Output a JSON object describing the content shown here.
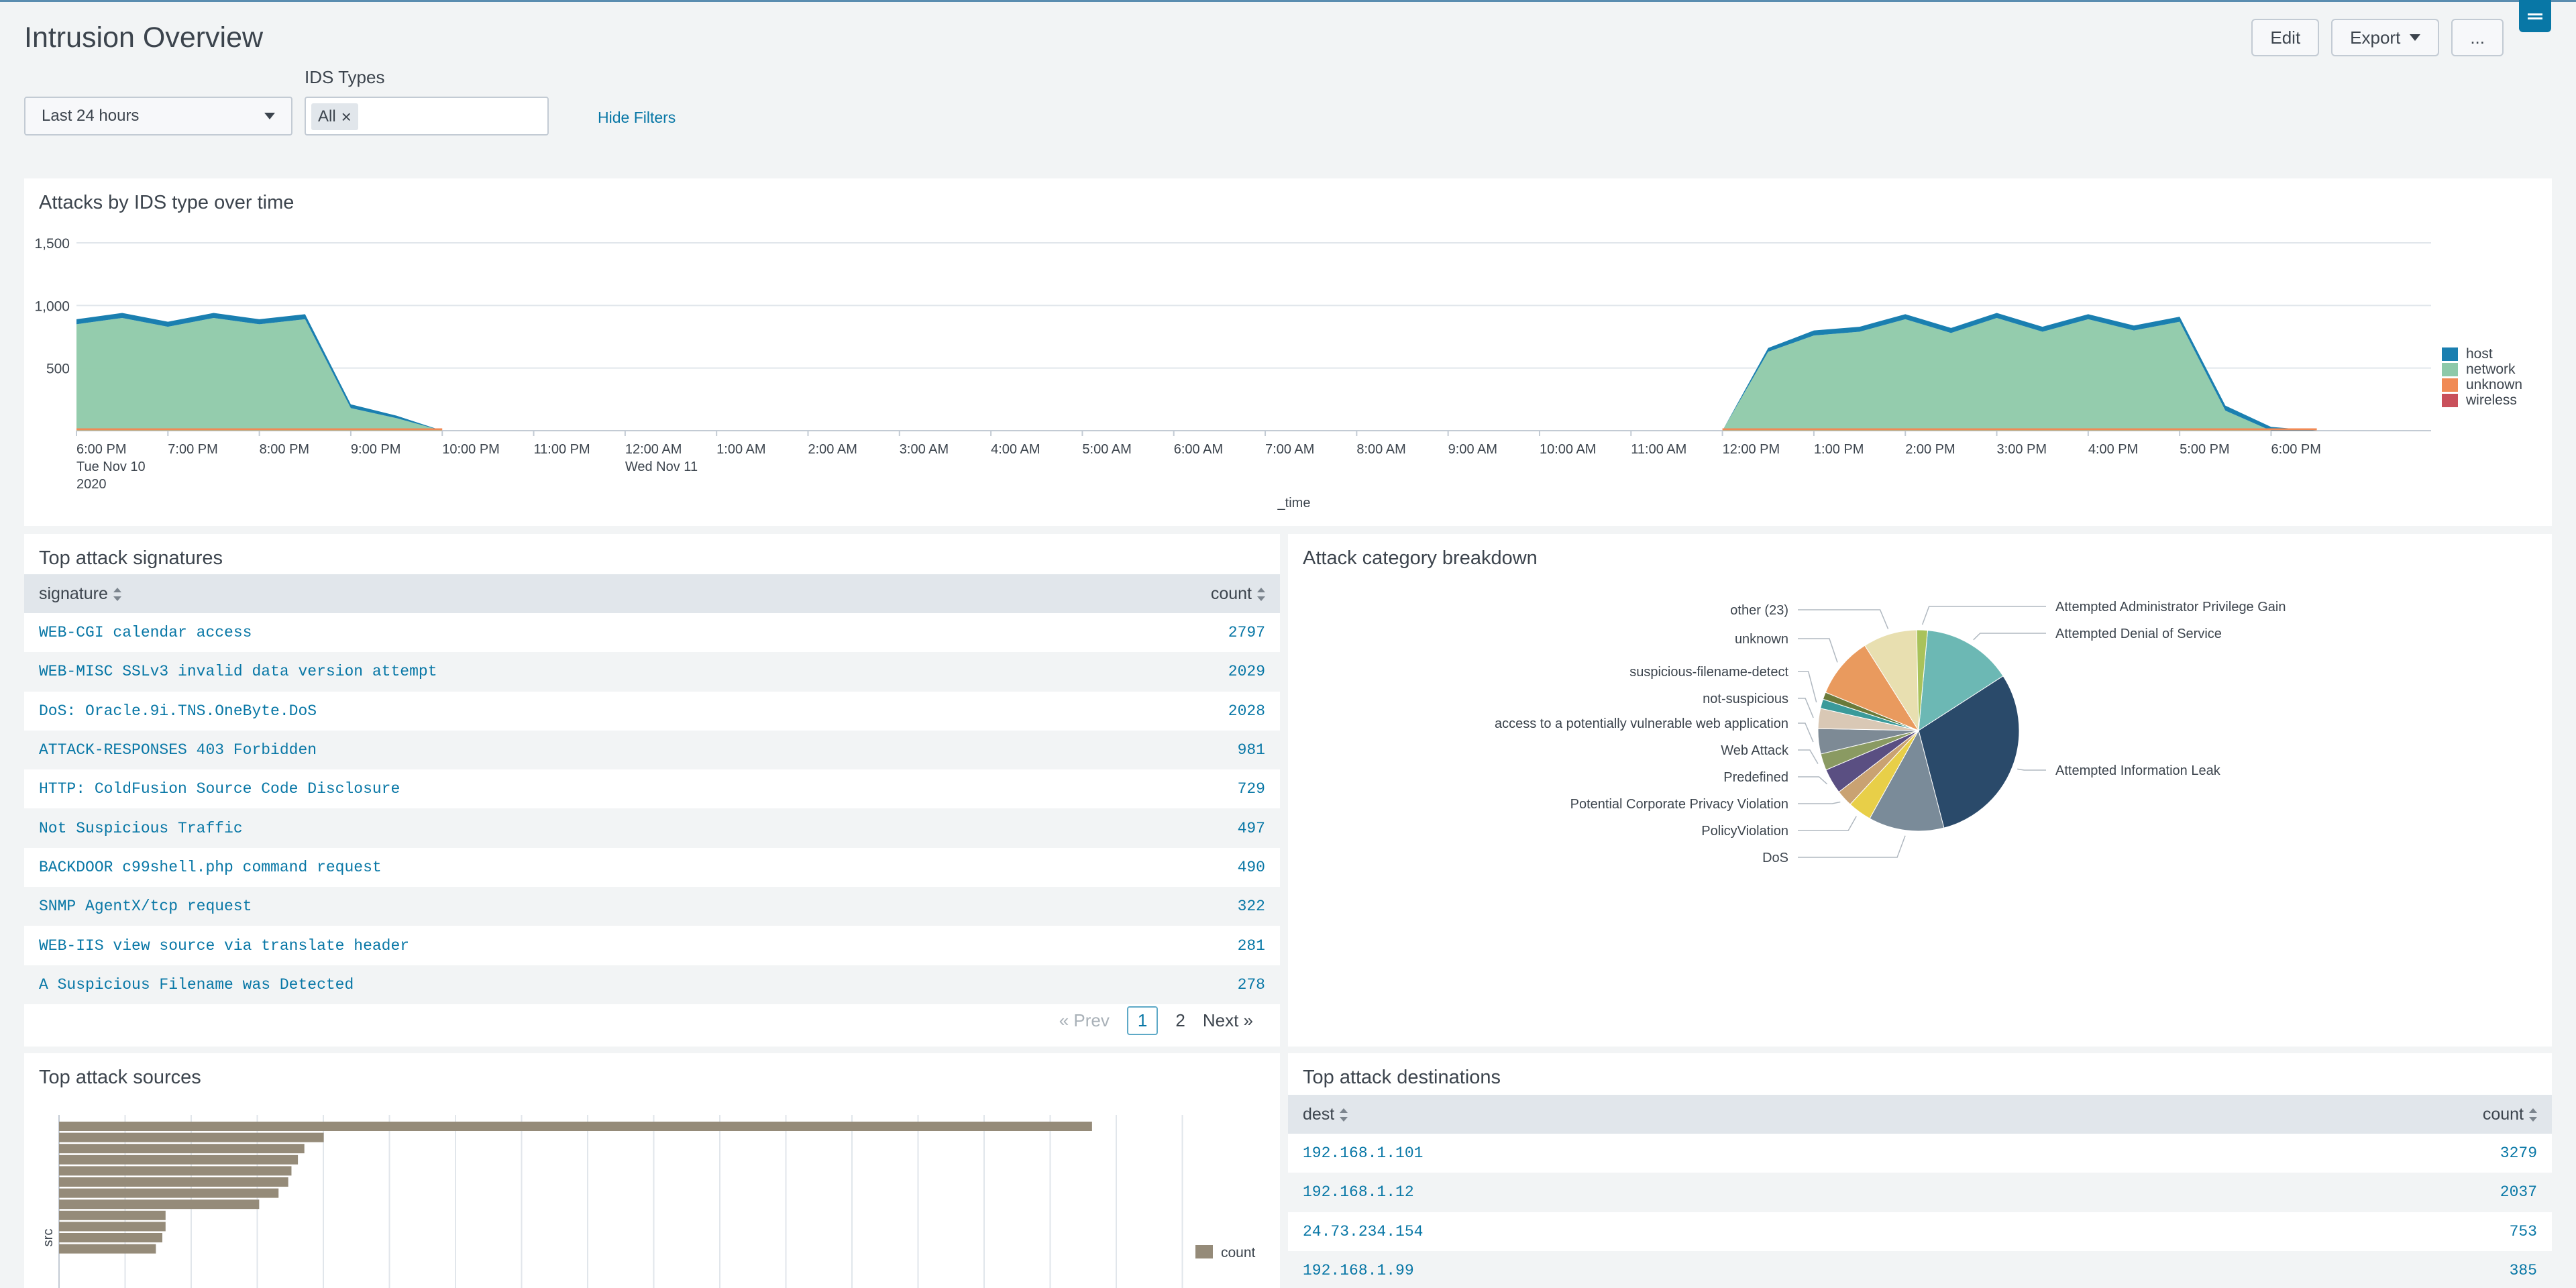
{
  "page": {
    "title": "Intrusion Overview",
    "actions": {
      "edit": "Edit",
      "export": "Export",
      "more": "..."
    }
  },
  "filters": {
    "time_range": "Last 24 hours",
    "ids_label": "IDS Types",
    "ids_token": "All",
    "hide_filters": "Hide Filters"
  },
  "attacks_over_time": {
    "title": "Attacks by IDS type over time",
    "colors": {
      "host": "#1a7fb0",
      "network": "#8ec9a9",
      "unknown": "#f08a55",
      "wireless": "#c9505b"
    },
    "chart_data": {
      "type": "area",
      "title": "Attacks by IDS type over time",
      "xlabel": "_time",
      "ylabel": "",
      "ylim": [
        0,
        1500
      ],
      "y_ticks": [
        "500",
        "1,000",
        "1,500"
      ],
      "x_tick_labels": [
        "6:00 PM",
        "7:00 PM",
        "8:00 PM",
        "9:00 PM",
        "10:00 PM",
        "11:00 PM",
        "12:00 AM",
        "1:00 AM",
        "2:00 AM",
        "3:00 AM",
        "4:00 AM",
        "5:00 AM",
        "6:00 AM",
        "7:00 AM",
        "8:00 AM",
        "9:00 AM",
        "10:00 AM",
        "11:00 AM",
        "12:00 PM",
        "1:00 PM",
        "2:00 PM",
        "3:00 PM",
        "4:00 PM",
        "5:00 PM",
        "6:00 PM"
      ],
      "x_subtitles": {
        "0": [
          "Tue Nov 10",
          "2020"
        ],
        "6": [
          "Wed Nov 11"
        ]
      },
      "x": [
        "2020-11-10 18:00",
        "2020-11-10 18:30",
        "2020-11-10 19:00",
        "2020-11-10 19:30",
        "2020-11-10 20:00",
        "2020-11-10 20:30",
        "2020-11-10 21:00",
        "2020-11-10 21:30",
        "2020-11-10 22:00",
        "2020-11-11 12:00",
        "2020-11-11 12:30",
        "2020-11-11 13:00",
        "2020-11-11 13:30",
        "2020-11-11 14:00",
        "2020-11-11 14:30",
        "2020-11-11 15:00",
        "2020-11-11 15:30",
        "2020-11-11 16:00",
        "2020-11-11 16:30",
        "2020-11-11 17:00",
        "2020-11-11 17:30",
        "2020-11-11 18:00",
        "2020-11-11 18:30"
      ],
      "series": [
        {
          "name": "host",
          "values": [
            40,
            40,
            40,
            40,
            40,
            40,
            30,
            20,
            0,
            0,
            30,
            40,
            40,
            40,
            40,
            40,
            40,
            40,
            40,
            40,
            40,
            30,
            0
          ]
        },
        {
          "name": "network",
          "values": [
            850,
            900,
            830,
            900,
            850,
            890,
            180,
            100,
            0,
            0,
            630,
            760,
            790,
            890,
            780,
            900,
            790,
            890,
            800,
            870,
            160,
            0,
            0
          ]
        },
        {
          "name": "unknown",
          "values": [
            5,
            5,
            5,
            5,
            5,
            5,
            0,
            0,
            0,
            0,
            5,
            5,
            5,
            5,
            5,
            5,
            5,
            5,
            5,
            5,
            0,
            0,
            0
          ]
        },
        {
          "name": "wireless",
          "values": [
            0,
            0,
            0,
            0,
            0,
            0,
            0,
            0,
            0,
            0,
            0,
            0,
            0,
            0,
            0,
            0,
            0,
            0,
            0,
            0,
            0,
            0,
            0
          ]
        }
      ],
      "legend": [
        "host",
        "network",
        "unknown",
        "wireless"
      ],
      "legend_position": "right",
      "grid": true
    }
  },
  "signatures": {
    "title": "Top attack signatures",
    "columns": [
      "signature",
      "count"
    ],
    "rows": [
      [
        "WEB-CGI calendar access",
        "2797"
      ],
      [
        "WEB-MISC SSLv3 invalid data version attempt",
        "2029"
      ],
      [
        "DoS: Oracle.9i.TNS.OneByte.DoS",
        "2028"
      ],
      [
        "ATTACK-RESPONSES 403 Forbidden",
        "981"
      ],
      [
        "HTTP: ColdFusion Source Code Disclosure",
        "729"
      ],
      [
        "Not Suspicious Traffic",
        "497"
      ],
      [
        "BACKDOOR c99shell.php command request",
        "490"
      ],
      [
        "SNMP AgentX/tcp request",
        "322"
      ],
      [
        "WEB-IIS view source via translate header",
        "281"
      ],
      [
        "A Suspicious Filename was Detected",
        "278"
      ]
    ],
    "pager": {
      "prev": "« Prev",
      "page1": "1",
      "page2": "2",
      "next": "Next »"
    }
  },
  "categories": {
    "title": "Attack category breakdown",
    "chart_data": {
      "type": "pie",
      "title": "Attack category breakdown",
      "slices": [
        {
          "label": "Attempted Denial of Service",
          "value": 12.5,
          "color": "#6cb8b4"
        },
        {
          "label": "Attempted Information Leak",
          "value": 26,
          "color": "#2a4a6a"
        },
        {
          "label": "DoS",
          "value": 10.5,
          "color": "#7a8b99"
        },
        {
          "label": "PolicyViolation",
          "value": 3.3,
          "color": "#e8cf48"
        },
        {
          "label": "Potential Corporate Privacy Violation",
          "value": 2.3,
          "color": "#c9a272"
        },
        {
          "label": "Predefined",
          "value": 3.5,
          "color": "#5a4f82"
        },
        {
          "label": "Web Attack",
          "value": 2.3,
          "color": "#8a9a62"
        },
        {
          "label": "access to a potentially vulnerable web application",
          "value": 3.5,
          "color": "#7d8a95"
        },
        {
          "label": "not-suspicious",
          "value": 2.8,
          "color": "#d9c8b5"
        },
        {
          "label": "suspicious-filename-detect",
          "value": 1.3,
          "color": "#3a9a9a"
        },
        {
          "label": "",
          "value": 1.0,
          "color": "#6a7a3a"
        },
        {
          "label": "unknown",
          "value": 8.5,
          "color": "#e99a5e"
        },
        {
          "label": "other (23)",
          "value": 7.5,
          "color": "#e8dfb0"
        },
        {
          "label": "Attempted Administrator Privilege Gain",
          "value": 1.5,
          "color": "#a9c25a"
        }
      ]
    }
  },
  "sources": {
    "title": "Top attack sources",
    "ylabel": "src",
    "legend": "count",
    "bar_color": "#958b79",
    "chart_data": {
      "type": "bar",
      "orientation": "horizontal",
      "ylabel": "src",
      "series": [
        {
          "name": "count",
          "values": [
            3200,
            820,
            760,
            740,
            720,
            710,
            680,
            620,
            330,
            330,
            320,
            300
          ]
        }
      ]
    }
  },
  "destinations": {
    "title": "Top attack destinations",
    "columns": [
      "dest",
      "count"
    ],
    "rows": [
      [
        "192.168.1.101",
        "3279"
      ],
      [
        "192.168.1.12",
        "2037"
      ],
      [
        "24.73.234.154",
        "753"
      ],
      [
        "192.168.1.99",
        "385"
      ]
    ]
  }
}
